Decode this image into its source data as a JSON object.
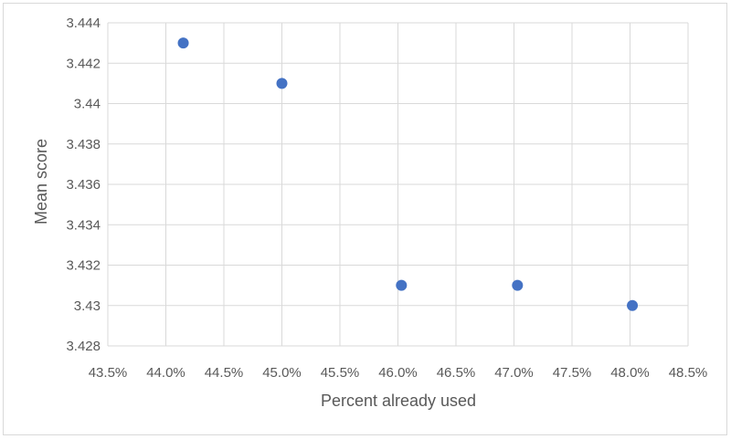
{
  "chart_data": {
    "type": "scatter",
    "title": "",
    "xlabel": "Percent already used",
    "ylabel": "Mean score",
    "xlim": [
      43.5,
      48.5
    ],
    "ylim": [
      3.428,
      3.444
    ],
    "x_ticks": [
      "43.5%",
      "44.0%",
      "44.5%",
      "45.0%",
      "45.5%",
      "46.0%",
      "46.5%",
      "47.0%",
      "47.5%",
      "48.0%",
      "48.5%"
    ],
    "y_ticks": [
      "3.428",
      "3.43",
      "3.432",
      "3.434",
      "3.436",
      "3.438",
      "3.44",
      "3.442",
      "3.444"
    ],
    "grid": "vertical and horizontal",
    "legend": "none",
    "marker_color": "#4472c4",
    "series": [
      {
        "points": [
          {
            "x": 44.15,
            "y": 3.443
          },
          {
            "x": 45.0,
            "y": 3.441
          },
          {
            "x": 46.03,
            "y": 3.431
          },
          {
            "x": 47.03,
            "y": 3.431
          },
          {
            "x": 48.02,
            "y": 3.43
          }
        ]
      }
    ]
  }
}
